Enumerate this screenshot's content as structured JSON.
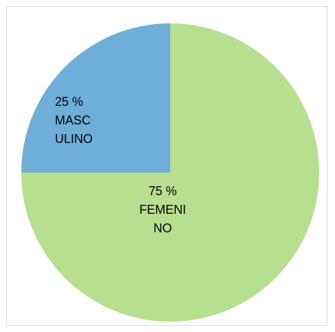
{
  "chart_data": {
    "type": "pie",
    "categories": [
      "FEMENINO",
      "MASCULINO"
    ],
    "values": [
      75,
      25
    ],
    "value_labels": [
      "75 %",
      "25 %"
    ],
    "colors": [
      "#b6df8f",
      "#6eaed8"
    ]
  }
}
